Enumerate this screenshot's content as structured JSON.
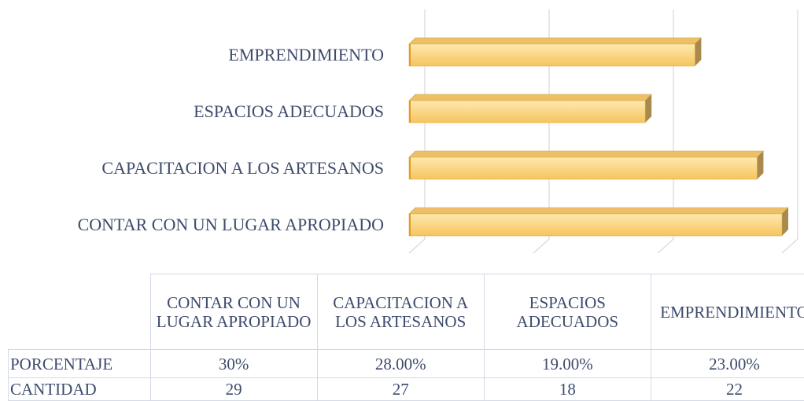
{
  "chart_data": {
    "type": "bar3d_horizontal",
    "categories": [
      "CONTAR CON UN LUGAR APROPIADO",
      "CAPACITACION A LOS ARTESANOS",
      "ESPACIOS ADECUADOS",
      "EMPRENDIMIENTO"
    ],
    "series": [
      {
        "name": "PORCENTAJE",
        "color": "#f8cf6e",
        "values": [
          30,
          28,
          19,
          23
        ],
        "value_labels": [
          "30%",
          "28.00%",
          "19.00%",
          "23.00%"
        ]
      }
    ],
    "data_table": {
      "rows": [
        {
          "name": "CANTIDAD",
          "values": [
            29,
            27,
            18,
            22
          ]
        }
      ]
    },
    "xlim": [
      0,
      30
    ],
    "xticks": [
      0,
      10,
      20,
      30
    ],
    "grid": true
  }
}
